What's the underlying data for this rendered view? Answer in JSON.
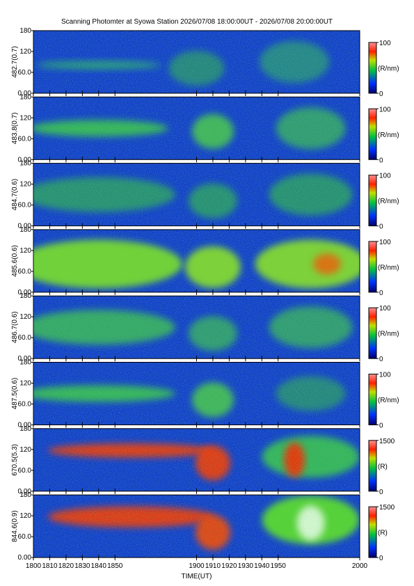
{
  "title": "Scanning Photomter at Syowa Station 2026/07/08 18:00:00UT - 2026/07/08 20:00:00UT",
  "x_axis": {
    "xlim": [
      1800,
      2000
    ],
    "xticks": [
      1800,
      1810,
      1820,
      1830,
      1840,
      1850,
      1900,
      1910,
      1920,
      1930,
      1940,
      1950,
      2000
    ],
    "xlabel": "TIME(UT)"
  },
  "chart_data": [
    {
      "type": "heatmap",
      "ylabel": "482.7(0.7)",
      "ylim": [
        0,
        180
      ],
      "yticks": [
        {
          "value": 0,
          "label": "0.00"
        },
        {
          "value": 60,
          "label": "60.0"
        },
        120,
        180
      ],
      "colorbar": {
        "label": "(R/nm)",
        "ticks": [
          0,
          100
        ]
      }
    },
    {
      "type": "heatmap",
      "ylabel": "483.8(0.7)",
      "ylim": [
        0,
        180
      ],
      "yticks": [
        {
          "value": 0,
          "label": "0.00"
        },
        {
          "value": 60,
          "label": "60.0"
        },
        120,
        180
      ],
      "colorbar": {
        "label": "(R/nm)",
        "ticks": [
          0,
          100
        ]
      }
    },
    {
      "type": "heatmap",
      "ylabel": "484.7(0.6)",
      "ylim": [
        0,
        180
      ],
      "yticks": [
        {
          "value": 0,
          "label": "0.00"
        },
        {
          "value": 60,
          "label": "60.0"
        },
        120,
        180
      ],
      "colorbar": {
        "label": "(R/nm)",
        "ticks": [
          0,
          100
        ]
      }
    },
    {
      "type": "heatmap",
      "ylabel": "485.6(0.6)",
      "ylim": [
        0,
        180
      ],
      "yticks": [
        {
          "value": 0,
          "label": "0.00"
        },
        {
          "value": 60,
          "label": "60.0"
        },
        120,
        180
      ],
      "colorbar": {
        "label": "(R/nm)",
        "ticks": [
          0,
          100
        ]
      }
    },
    {
      "type": "heatmap",
      "ylabel": "486.7(0.6)",
      "ylim": [
        0,
        180
      ],
      "yticks": [
        {
          "value": 0,
          "label": "0.00"
        },
        {
          "value": 60,
          "label": "60.0"
        },
        120,
        180
      ],
      "colorbar": {
        "label": "(R/nm)",
        "ticks": [
          0,
          100
        ]
      }
    },
    {
      "type": "heatmap",
      "ylabel": "487.5(0.6)",
      "ylim": [
        0,
        180
      ],
      "yticks": [
        {
          "value": 0,
          "label": "0.00"
        },
        {
          "value": 60,
          "label": "60.0"
        },
        120,
        180
      ],
      "colorbar": {
        "label": "(R/nm)",
        "ticks": [
          0,
          100
        ]
      }
    },
    {
      "type": "heatmap",
      "ylabel": "670.5(5.3)",
      "ylim": [
        0,
        180
      ],
      "yticks": [
        {
          "value": 0,
          "label": "0.00"
        },
        {
          "value": 60,
          "label": "60.0"
        },
        120,
        180
      ],
      "colorbar": {
        "label": "(R)",
        "ticks": [
          0,
          1500
        ]
      }
    },
    {
      "type": "heatmap",
      "ylabel": "844.6(0.9)",
      "ylim": [
        0,
        180
      ],
      "yticks": [
        {
          "value": 0,
          "label": "0.00"
        },
        {
          "value": 60,
          "label": "60.0"
        },
        120,
        180
      ],
      "colorbar": {
        "label": "(R)",
        "ticks": [
          0,
          1500
        ]
      }
    }
  ]
}
